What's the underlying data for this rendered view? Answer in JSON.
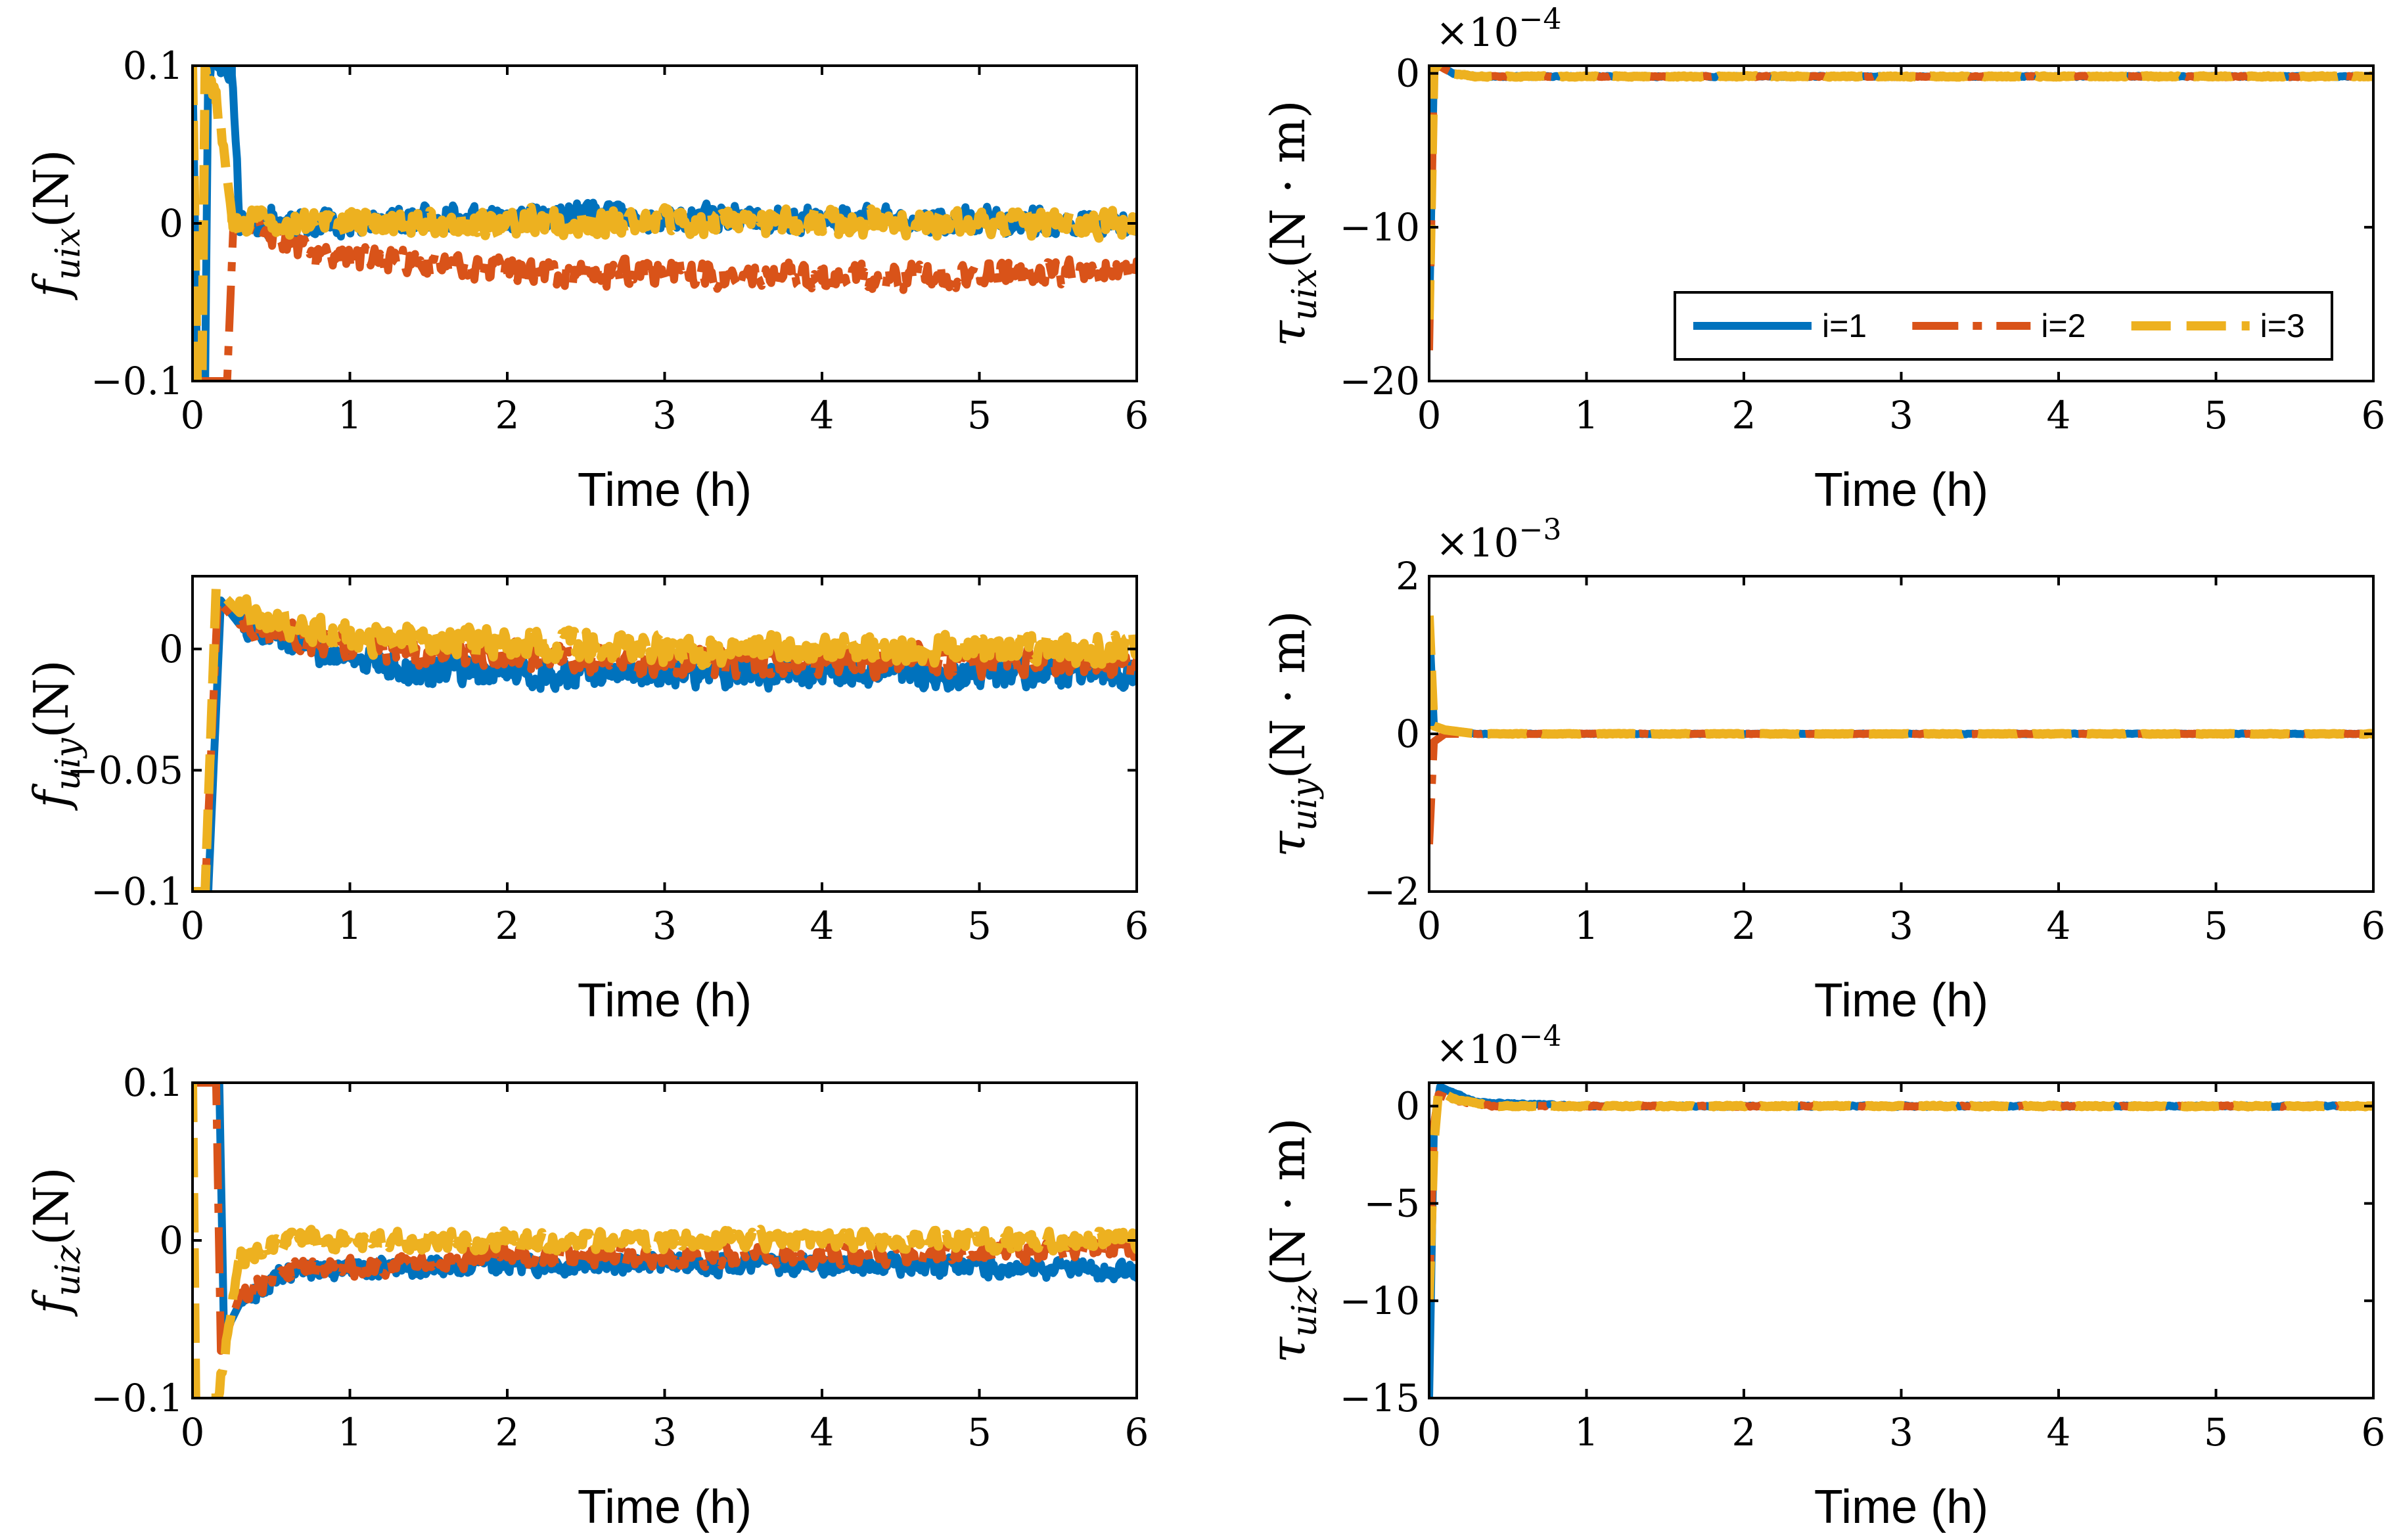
{
  "colors": {
    "i1": "#0072BD",
    "i2": "#D95319",
    "i3": "#EDB120"
  },
  "legend": {
    "entries": [
      "i=1",
      "i=2",
      "i=3"
    ]
  },
  "chart_data": [
    {
      "type": "line",
      "id": "fuix",
      "xlabel": "Time (h)",
      "ylabel": {
        "symbol": "f",
        "sub": "uix",
        "unit": "(N)"
      },
      "xlim": [
        0,
        6
      ],
      "ylim": [
        -0.1,
        0.1
      ],
      "xticks": [
        0,
        1,
        2,
        3,
        4,
        5,
        6
      ],
      "yticks": [
        -0.1,
        0,
        0.1
      ],
      "ytick_labels": [
        "−0.1",
        "0",
        "0.1"
      ],
      "exponent": "",
      "series": [
        {
          "name": "i=1",
          "noise": 0.011,
          "points": [
            [
              0,
              0.1
            ],
            [
              0.03,
              -0.1
            ],
            [
              0.08,
              -0.1
            ],
            [
              0.1,
              0.1
            ],
            [
              0.25,
              0.1
            ],
            [
              0.3,
              0.0
            ],
            [
              0.5,
              0.0
            ],
            [
              2,
              0.005
            ],
            [
              6,
              0.0
            ]
          ]
        },
        {
          "name": "i=2",
          "noise": 0.011,
          "points": [
            [
              0,
              -0.1
            ],
            [
              0.22,
              -0.1
            ],
            [
              0.26,
              0.0
            ],
            [
              0.4,
              -0.005
            ],
            [
              0.8,
              -0.02
            ],
            [
              2,
              -0.03
            ],
            [
              4,
              -0.035
            ],
            [
              6,
              -0.03
            ]
          ]
        },
        {
          "name": "i=3",
          "noise": 0.011,
          "points": [
            [
              0,
              0.1
            ],
            [
              0.03,
              -0.1
            ],
            [
              0.06,
              -0.1
            ],
            [
              0.08,
              0.1
            ],
            [
              0.15,
              0.08
            ],
            [
              0.25,
              0.0
            ],
            [
              1,
              0.0
            ],
            [
              6,
              0.0
            ]
          ]
        }
      ]
    },
    {
      "type": "line",
      "id": "tauix",
      "xlabel": "Time (h)",
      "ylabel": {
        "symbol": "τ",
        "sub": "uix",
        "unit": "(N · m)"
      },
      "xlim": [
        0,
        6
      ],
      "ylim": [
        -20,
        0.5
      ],
      "xticks": [
        0,
        1,
        2,
        3,
        4,
        5,
        6
      ],
      "yticks": [
        -20,
        -10,
        0
      ],
      "ytick_labels": [
        "−20",
        "−10",
        "0"
      ],
      "exponent": "×10−4",
      "legend_position": "lower-right",
      "series": [
        {
          "name": "i=1",
          "noise": 0.06,
          "points": [
            [
              0,
              -16
            ],
            [
              0.03,
              0.2
            ],
            [
              0.06,
              0.6
            ],
            [
              0.15,
              0.0
            ],
            [
              0.3,
              -0.2
            ],
            [
              6,
              -0.2
            ]
          ]
        },
        {
          "name": "i=2",
          "noise": 0.06,
          "points": [
            [
              0,
              -18
            ],
            [
              0.03,
              0.2
            ],
            [
              0.06,
              0.5
            ],
            [
              0.15,
              0.0
            ],
            [
              0.3,
              -0.2
            ],
            [
              6,
              -0.2
            ]
          ]
        },
        {
          "name": "i=3",
          "noise": 0.06,
          "points": [
            [
              0,
              -16
            ],
            [
              0.03,
              0.2
            ],
            [
              0.06,
              0.6
            ],
            [
              0.15,
              0.0
            ],
            [
              0.3,
              -0.2
            ],
            [
              6,
              -0.2
            ]
          ]
        }
      ]
    },
    {
      "type": "line",
      "id": "fuiy",
      "xlabel": "Time (h)",
      "ylabel": {
        "symbol": "f",
        "sub": "uiy",
        "unit": "(N)"
      },
      "xlim": [
        0,
        6
      ],
      "ylim": [
        -0.1,
        0.03
      ],
      "xticks": [
        0,
        1,
        2,
        3,
        4,
        5,
        6
      ],
      "yticks": [
        -0.1,
        -0.05,
        0
      ],
      "ytick_labels": [
        "−0.1",
        "−0.05",
        "0"
      ],
      "exponent": "",
      "series": [
        {
          "name": "i=1",
          "noise": 0.008,
          "points": [
            [
              0,
              -0.1
            ],
            [
              0.1,
              -0.1
            ],
            [
              0.18,
              0.02
            ],
            [
              0.3,
              0.01
            ],
            [
              0.8,
              0.0
            ],
            [
              1.5,
              -0.01
            ],
            [
              3,
              -0.01
            ],
            [
              6,
              -0.01
            ]
          ]
        },
        {
          "name": "i=2",
          "noise": 0.008,
          "points": [
            [
              0,
              -0.1
            ],
            [
              0.08,
              -0.1
            ],
            [
              0.16,
              0.02
            ],
            [
              0.3,
              0.01
            ],
            [
              1,
              0.0
            ],
            [
              3,
              -0.005
            ],
            [
              6,
              -0.005
            ]
          ]
        },
        {
          "name": "i=3",
          "noise": 0.008,
          "points": [
            [
              0,
              -0.1
            ],
            [
              0.08,
              -0.1
            ],
            [
              0.15,
              0.025
            ],
            [
              0.3,
              0.015
            ],
            [
              1,
              0.005
            ],
            [
              3,
              0.0
            ],
            [
              6,
              0.0
            ]
          ]
        }
      ]
    },
    {
      "type": "line",
      "id": "tauiy",
      "xlabel": "Time (h)",
      "ylabel": {
        "symbol": "τ",
        "sub": "uiy",
        "unit": "(N · m)"
      },
      "xlim": [
        0,
        6
      ],
      "ylim": [
        -2,
        2
      ],
      "xticks": [
        0,
        1,
        2,
        3,
        4,
        5,
        6
      ],
      "yticks": [
        -2,
        0,
        2
      ],
      "ytick_labels": [
        "−2",
        "0",
        "2"
      ],
      "exponent": "×10−3",
      "series": [
        {
          "name": "i=1",
          "noise": 0.006,
          "points": [
            [
              0,
              1.4
            ],
            [
              0.03,
              0.1
            ],
            [
              0.1,
              0.05
            ],
            [
              0.3,
              0.0
            ],
            [
              6,
              0.0
            ]
          ]
        },
        {
          "name": "i=2",
          "noise": 0.006,
          "points": [
            [
              0,
              -1.4
            ],
            [
              0.03,
              -0.1
            ],
            [
              0.1,
              0.0
            ],
            [
              0.3,
              0.0
            ],
            [
              6,
              0.0
            ]
          ]
        },
        {
          "name": "i=3",
          "noise": 0.006,
          "points": [
            [
              0,
              1.5
            ],
            [
              0.03,
              0.1
            ],
            [
              0.1,
              0.05
            ],
            [
              0.3,
              0.0
            ],
            [
              6,
              0.0
            ]
          ]
        }
      ]
    },
    {
      "type": "line",
      "id": "fuiz",
      "xlabel": "Time (h)",
      "ylabel": {
        "symbol": "f",
        "sub": "uiz",
        "unit": "(N)"
      },
      "xlim": [
        0,
        6
      ],
      "ylim": [
        -0.1,
        0.1
      ],
      "xticks": [
        0,
        1,
        2,
        3,
        4,
        5,
        6
      ],
      "yticks": [
        -0.1,
        0,
        0.1
      ],
      "ytick_labels": [
        "−0.1",
        "0",
        "0.1"
      ],
      "exponent": "",
      "series": [
        {
          "name": "i=1",
          "noise": 0.008,
          "points": [
            [
              0,
              0.1
            ],
            [
              0.17,
              0.1
            ],
            [
              0.2,
              -0.06
            ],
            [
              0.3,
              -0.04
            ],
            [
              0.6,
              -0.02
            ],
            [
              2,
              -0.015
            ],
            [
              4,
              -0.015
            ],
            [
              6,
              -0.02
            ]
          ]
        },
        {
          "name": "i=2",
          "noise": 0.008,
          "points": [
            [
              0,
              0.1
            ],
            [
              0.15,
              0.1
            ],
            [
              0.18,
              -0.07
            ],
            [
              0.3,
              -0.035
            ],
            [
              0.6,
              -0.02
            ],
            [
              2,
              -0.01
            ],
            [
              4,
              -0.01
            ],
            [
              6,
              -0.005
            ]
          ]
        },
        {
          "name": "i=3",
          "noise": 0.008,
          "points": [
            [
              0,
              0.1
            ],
            [
              0.02,
              -0.1
            ],
            [
              0.12,
              -0.1
            ],
            [
              0.16,
              -0.1
            ],
            [
              0.3,
              -0.01
            ],
            [
              0.6,
              0.0
            ],
            [
              6,
              0.0
            ]
          ]
        }
      ]
    },
    {
      "type": "line",
      "id": "tauiz",
      "xlabel": "Time (h)",
      "ylabel": {
        "symbol": "τ",
        "sub": "uiz",
        "unit": "(N · m)"
      },
      "xlim": [
        0,
        6
      ],
      "ylim": [
        -15,
        1.2
      ],
      "xticks": [
        0,
        1,
        2,
        3,
        4,
        5,
        6
      ],
      "yticks": [
        -15,
        -10,
        -5,
        0
      ],
      "ytick_labels": [
        "−15",
        "−10",
        "−5",
        "0"
      ],
      "exponent": "×10−4",
      "series": [
        {
          "name": "i=1",
          "noise": 0.05,
          "points": [
            [
              0,
              -15
            ],
            [
              0.03,
              -1
            ],
            [
              0.07,
              1.0
            ],
            [
              0.12,
              0.8
            ],
            [
              0.3,
              0.2
            ],
            [
              1,
              0.0
            ],
            [
              6,
              0.0
            ]
          ]
        },
        {
          "name": "i=2",
          "noise": 0.05,
          "points": [
            [
              0,
              -10
            ],
            [
              0.03,
              -1
            ],
            [
              0.06,
              0.6
            ],
            [
              0.15,
              0.3
            ],
            [
              0.4,
              0.0
            ],
            [
              6,
              0.0
            ]
          ]
        },
        {
          "name": "i=3",
          "noise": 0.05,
          "points": [
            [
              0,
              -10
            ],
            [
              0.03,
              -2
            ],
            [
              0.06,
              0.8
            ],
            [
              0.15,
              0.4
            ],
            [
              0.4,
              0.0
            ],
            [
              6,
              0.0
            ]
          ]
        }
      ]
    }
  ]
}
